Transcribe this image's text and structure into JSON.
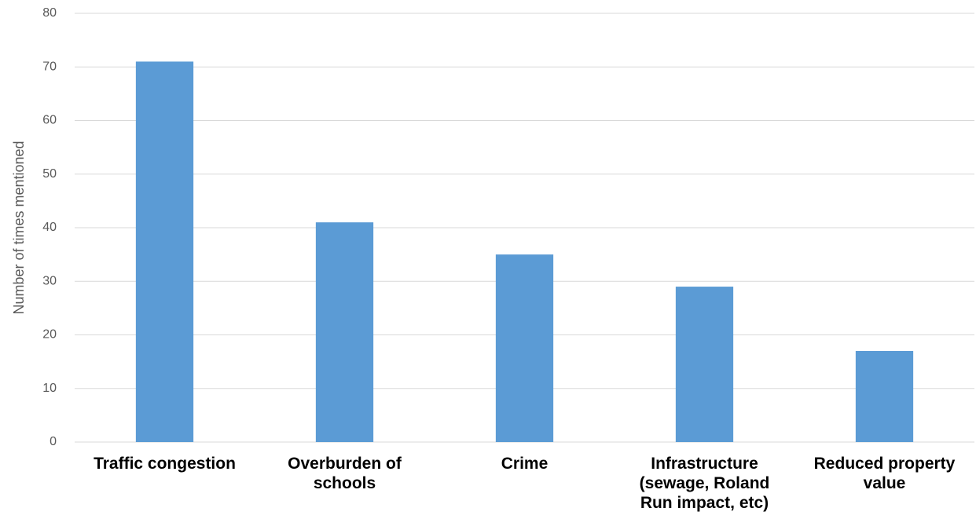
{
  "chart_data": {
    "type": "bar",
    "y_label": "Number of times mentioned",
    "categories": [
      "Traffic congestion",
      "Overburden of schools",
      "Crime",
      "Infrastructure (sewage, Roland Run impact, etc)",
      "Reduced property value"
    ],
    "values": [
      71,
      41,
      35,
      29,
      17
    ],
    "color": "#5b9bd5",
    "ylim": [
      0,
      80
    ],
    "yticks": [
      0,
      10,
      20,
      30,
      40,
      50,
      60,
      70,
      80
    ],
    "grid": true
  }
}
